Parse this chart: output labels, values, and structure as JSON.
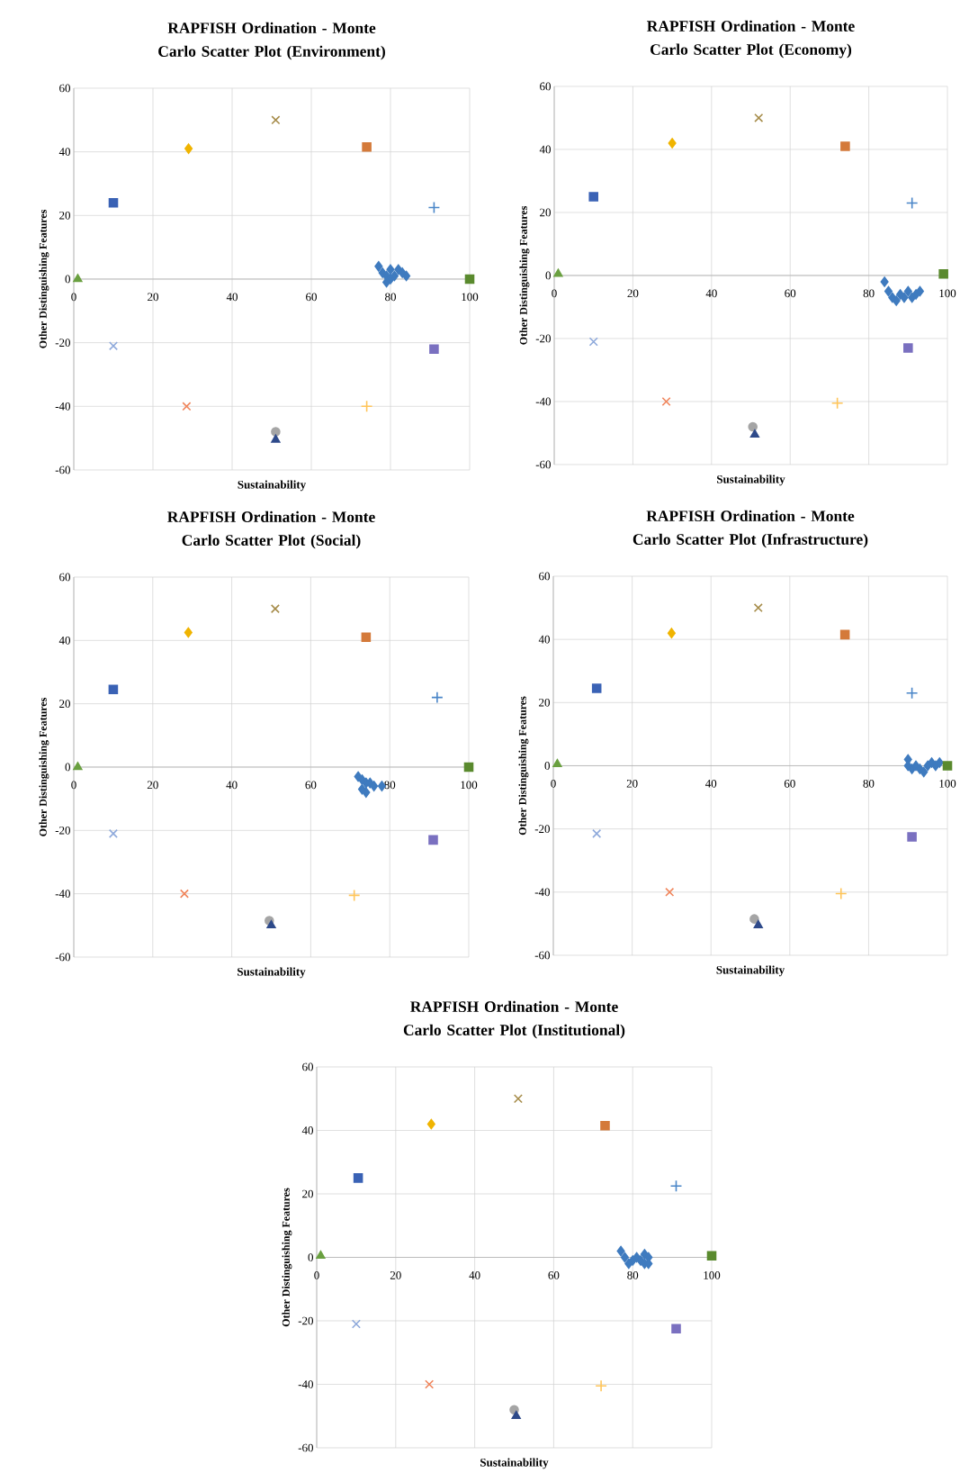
{
  "chart_data": [
    {
      "type": "scatter",
      "title": "RAPFISH Ordination - Monte Carlo Scatter Plot (Environment)",
      "xlabel": "Sustainability",
      "ylabel": "Other Distinguishing Features",
      "xlim": [
        0,
        100
      ],
      "ylim": [
        -60,
        60
      ],
      "xticks": [
        0,
        20,
        40,
        60,
        80,
        100
      ],
      "yticks": [
        -60,
        -40,
        -20,
        0,
        20,
        40,
        60
      ],
      "grid": true,
      "series": [
        {
          "color": "#3f7bbf",
          "marker": "diamond",
          "x": [
            77,
            78,
            79,
            79,
            80,
            80,
            81,
            82,
            83,
            84
          ],
          "values": [
            4,
            2,
            1,
            -1,
            0,
            3,
            1,
            3,
            2,
            1
          ]
        },
        {
          "color": "#3a62b5",
          "marker": "square",
          "x": [
            10
          ],
          "values": [
            24
          ]
        },
        {
          "color": "#f0b400",
          "marker": "diamond",
          "x": [
            29
          ],
          "values": [
            41
          ]
        },
        {
          "color": "#a68c4a",
          "marker": "cross",
          "x": [
            51
          ],
          "values": [
            50
          ]
        },
        {
          "color": "#d47a3a",
          "marker": "square",
          "x": [
            74
          ],
          "values": [
            41.5
          ]
        },
        {
          "color": "#4a86c8",
          "marker": "plus",
          "x": [
            91
          ],
          "values": [
            22.5
          ]
        },
        {
          "color": "#5a8a2e",
          "marker": "square",
          "x": [
            100
          ],
          "values": [
            0
          ]
        },
        {
          "color": "#6aa040",
          "marker": "triangle",
          "x": [
            1
          ],
          "values": [
            0
          ]
        },
        {
          "color": "#8ea9db",
          "marker": "cross",
          "x": [
            10
          ],
          "values": [
            -21
          ]
        },
        {
          "color": "#f0845a",
          "marker": "cross",
          "x": [
            28.5
          ],
          "values": [
            -40
          ]
        },
        {
          "color": "#a5a5a5",
          "marker": "circle",
          "x": [
            51
          ],
          "values": [
            -48
          ]
        },
        {
          "color": "#2e4a8a",
          "marker": "triangle",
          "x": [
            51
          ],
          "values": [
            -50.5
          ]
        },
        {
          "color": "#ffc55a",
          "marker": "plus",
          "x": [
            74
          ],
          "values": [
            -40
          ]
        },
        {
          "color": "#7a70c0",
          "marker": "square",
          "x": [
            91
          ],
          "values": [
            -22
          ]
        }
      ]
    },
    {
      "type": "scatter",
      "title": "RAPFISH Ordination - Monte Carlo Scatter Plot (Economy)",
      "xlabel": "Sustainability",
      "ylabel": "Other Distinguishing Features",
      "xlim": [
        0,
        100
      ],
      "ylim": [
        -60,
        60
      ],
      "xticks": [
        0,
        20,
        40,
        60,
        80,
        100
      ],
      "yticks": [
        -60,
        -40,
        -20,
        0,
        20,
        40,
        60
      ],
      "grid": true,
      "series": [
        {
          "color": "#3f7bbf",
          "marker": "diamond",
          "x": [
            84,
            85,
            86,
            87,
            88,
            89,
            90,
            91,
            92,
            93
          ],
          "values": [
            -2,
            -5,
            -7,
            -8,
            -6,
            -7,
            -5,
            -7,
            -6,
            -5
          ]
        },
        {
          "color": "#3a62b5",
          "marker": "square",
          "x": [
            10
          ],
          "values": [
            25
          ]
        },
        {
          "color": "#f0b400",
          "marker": "diamond",
          "x": [
            30
          ],
          "values": [
            42
          ]
        },
        {
          "color": "#a68c4a",
          "marker": "cross",
          "x": [
            52
          ],
          "values": [
            50
          ]
        },
        {
          "color": "#d47a3a",
          "marker": "square",
          "x": [
            74
          ],
          "values": [
            41
          ]
        },
        {
          "color": "#4a86c8",
          "marker": "plus",
          "x": [
            91
          ],
          "values": [
            23
          ]
        },
        {
          "color": "#5a8a2e",
          "marker": "square",
          "x": [
            99
          ],
          "values": [
            0.5
          ]
        },
        {
          "color": "#6aa040",
          "marker": "triangle",
          "x": [
            1
          ],
          "values": [
            0.5
          ]
        },
        {
          "color": "#8ea9db",
          "marker": "cross",
          "x": [
            10
          ],
          "values": [
            -21
          ]
        },
        {
          "color": "#f0845a",
          "marker": "cross",
          "x": [
            28.5
          ],
          "values": [
            -40
          ]
        },
        {
          "color": "#a5a5a5",
          "marker": "circle",
          "x": [
            50.5
          ],
          "values": [
            -48
          ]
        },
        {
          "color": "#2e4a8a",
          "marker": "triangle",
          "x": [
            51
          ],
          "values": [
            -50.5
          ]
        },
        {
          "color": "#ffc55a",
          "marker": "plus",
          "x": [
            72
          ],
          "values": [
            -40.5
          ]
        },
        {
          "color": "#7a70c0",
          "marker": "square",
          "x": [
            90
          ],
          "values": [
            -23
          ]
        }
      ]
    },
    {
      "type": "scatter",
      "title": "RAPFISH Ordination - Monte Carlo Scatter Plot (Social)",
      "xlabel": "Sustainability",
      "ylabel": "Other Distinguishing Features",
      "xlim": [
        0,
        100
      ],
      "ylim": [
        -60,
        60
      ],
      "xticks": [
        0,
        20,
        40,
        60,
        80,
        100
      ],
      "yticks": [
        -60,
        -40,
        -20,
        0,
        20,
        40,
        60
      ],
      "grid": true,
      "series": [
        {
          "color": "#3f7bbf",
          "marker": "diamond",
          "x": [
            72,
            73,
            73,
            74,
            74,
            75,
            76,
            78
          ],
          "values": [
            -3,
            -4,
            -7,
            -5,
            -8,
            -5,
            -6,
            -6
          ]
        },
        {
          "color": "#3a62b5",
          "marker": "square",
          "x": [
            10
          ],
          "values": [
            24.5
          ]
        },
        {
          "color": "#f0b400",
          "marker": "diamond",
          "x": [
            29
          ],
          "values": [
            42.5
          ]
        },
        {
          "color": "#a68c4a",
          "marker": "cross",
          "x": [
            51
          ],
          "values": [
            50
          ]
        },
        {
          "color": "#d47a3a",
          "marker": "square",
          "x": [
            74
          ],
          "values": [
            41
          ]
        },
        {
          "color": "#4a86c8",
          "marker": "plus",
          "x": [
            92
          ],
          "values": [
            22
          ]
        },
        {
          "color": "#5a8a2e",
          "marker": "square",
          "x": [
            100
          ],
          "values": [
            0
          ]
        },
        {
          "color": "#6aa040",
          "marker": "triangle",
          "x": [
            1
          ],
          "values": [
            0
          ]
        },
        {
          "color": "#8ea9db",
          "marker": "cross",
          "x": [
            10
          ],
          "values": [
            -21
          ]
        },
        {
          "color": "#f0845a",
          "marker": "cross",
          "x": [
            28
          ],
          "values": [
            -40
          ]
        },
        {
          "color": "#a5a5a5",
          "marker": "circle",
          "x": [
            49.5
          ],
          "values": [
            -48.5
          ]
        },
        {
          "color": "#2e4a8a",
          "marker": "triangle",
          "x": [
            50
          ],
          "values": [
            -50
          ]
        },
        {
          "color": "#ffc55a",
          "marker": "plus",
          "x": [
            71
          ],
          "values": [
            -40.5
          ]
        },
        {
          "color": "#7a70c0",
          "marker": "square",
          "x": [
            91
          ],
          "values": [
            -23
          ]
        }
      ]
    },
    {
      "type": "scatter",
      "title": "RAPFISH Ordination - Monte Carlo Scatter Plot (Infrastructure)",
      "xlabel": "Sustainability",
      "ylabel": "Other Distinguishing Features",
      "xlim": [
        0,
        100
      ],
      "ylim": [
        -60,
        60
      ],
      "xticks": [
        0,
        20,
        40,
        60,
        80,
        100
      ],
      "yticks": [
        -60,
        -40,
        -20,
        0,
        20,
        40,
        60
      ],
      "grid": true,
      "series": [
        {
          "color": "#3f7bbf",
          "marker": "diamond",
          "x": [
            90,
            90,
            91,
            92,
            93,
            94,
            95,
            96,
            97,
            98
          ],
          "values": [
            2,
            0,
            -1,
            0,
            -1,
            -2,
            0,
            1,
            0,
            1
          ]
        },
        {
          "color": "#3a62b5",
          "marker": "square",
          "x": [
            11
          ],
          "values": [
            24.5
          ]
        },
        {
          "color": "#f0b400",
          "marker": "diamond",
          "x": [
            30
          ],
          "values": [
            42
          ]
        },
        {
          "color": "#a68c4a",
          "marker": "cross",
          "x": [
            52
          ],
          "values": [
            50
          ]
        },
        {
          "color": "#d47a3a",
          "marker": "square",
          "x": [
            74
          ],
          "values": [
            41.5
          ]
        },
        {
          "color": "#4a86c8",
          "marker": "plus",
          "x": [
            91
          ],
          "values": [
            23
          ]
        },
        {
          "color": "#5a8a2e",
          "marker": "square",
          "x": [
            100
          ],
          "values": [
            0
          ]
        },
        {
          "color": "#6aa040",
          "marker": "triangle",
          "x": [
            1
          ],
          "values": [
            0.5
          ]
        },
        {
          "color": "#8ea9db",
          "marker": "cross",
          "x": [
            11
          ],
          "values": [
            -21.5
          ]
        },
        {
          "color": "#f0845a",
          "marker": "cross",
          "x": [
            29.5
          ],
          "values": [
            -40
          ]
        },
        {
          "color": "#a5a5a5",
          "marker": "circle",
          "x": [
            51
          ],
          "values": [
            -48.5
          ]
        },
        {
          "color": "#2e4a8a",
          "marker": "triangle",
          "x": [
            52
          ],
          "values": [
            -50.5
          ]
        },
        {
          "color": "#ffc55a",
          "marker": "plus",
          "x": [
            73
          ],
          "values": [
            -40.5
          ]
        },
        {
          "color": "#7a70c0",
          "marker": "square",
          "x": [
            91
          ],
          "values": [
            -22.5
          ]
        }
      ]
    },
    {
      "type": "scatter",
      "title": "RAPFISH Ordination - Monte Carlo Scatter Plot (Institutional)",
      "xlabel": "Sustainability",
      "ylabel": "Other Distinguishing Features",
      "xlim": [
        0,
        100
      ],
      "ylim": [
        -60,
        60
      ],
      "xticks": [
        0,
        20,
        40,
        60,
        80,
        100
      ],
      "yticks": [
        -60,
        -40,
        -20,
        0,
        20,
        40,
        60
      ],
      "grid": true,
      "series": [
        {
          "color": "#3f7bbf",
          "marker": "diamond",
          "x": [
            77,
            78,
            79,
            80,
            81,
            82,
            83,
            83,
            84,
            84
          ],
          "values": [
            2,
            0,
            -2,
            -1,
            0,
            -1,
            1,
            -2,
            0,
            -2
          ]
        },
        {
          "color": "#3a62b5",
          "marker": "square",
          "x": [
            10.5
          ],
          "values": [
            25
          ]
        },
        {
          "color": "#f0b400",
          "marker": "diamond",
          "x": [
            29
          ],
          "values": [
            42
          ]
        },
        {
          "color": "#a68c4a",
          "marker": "cross",
          "x": [
            51
          ],
          "values": [
            50
          ]
        },
        {
          "color": "#d47a3a",
          "marker": "square",
          "x": [
            73
          ],
          "values": [
            41.5
          ]
        },
        {
          "color": "#4a86c8",
          "marker": "plus",
          "x": [
            91
          ],
          "values": [
            22.5
          ]
        },
        {
          "color": "#5a8a2e",
          "marker": "square",
          "x": [
            100
          ],
          "values": [
            0.5
          ]
        },
        {
          "color": "#6aa040",
          "marker": "triangle",
          "x": [
            1
          ],
          "values": [
            0.5
          ]
        },
        {
          "color": "#8ea9db",
          "marker": "cross",
          "x": [
            10
          ],
          "values": [
            -21
          ]
        },
        {
          "color": "#f0845a",
          "marker": "cross",
          "x": [
            28.5
          ],
          "values": [
            -40
          ]
        },
        {
          "color": "#a5a5a5",
          "marker": "circle",
          "x": [
            50
          ],
          "values": [
            -48
          ]
        },
        {
          "color": "#2e4a8a",
          "marker": "triangle",
          "x": [
            50.5
          ],
          "values": [
            -50
          ]
        },
        {
          "color": "#ffc55a",
          "marker": "plus",
          "x": [
            72
          ],
          "values": [
            -40.5
          ]
        },
        {
          "color": "#7a70c0",
          "marker": "square",
          "x": [
            91
          ],
          "values": [
            -22.5
          ]
        }
      ]
    }
  ]
}
